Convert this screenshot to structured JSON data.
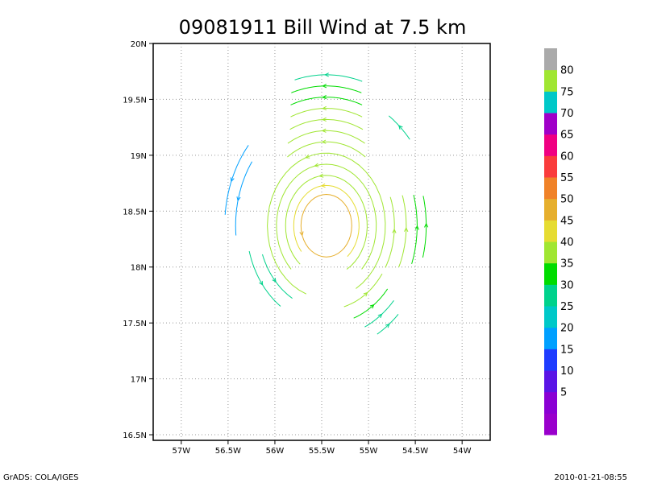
{
  "chart_data": {
    "type": "streamline",
    "title": "09081911 Bill Wind at 7.5 km",
    "xlabel": "",
    "ylabel": "",
    "xlim": [
      -57.3,
      -53.7
    ],
    "ylim": [
      16.45,
      20.0
    ],
    "x_ticks": [
      {
        "value": -57.0,
        "label": "57W"
      },
      {
        "value": -56.5,
        "label": "56.5W"
      },
      {
        "value": -56.0,
        "label": "56W"
      },
      {
        "value": -55.5,
        "label": "55.5W"
      },
      {
        "value": -55.0,
        "label": "55W"
      },
      {
        "value": -54.5,
        "label": "54.5W"
      },
      {
        "value": -54.0,
        "label": "54W"
      }
    ],
    "y_ticks": [
      {
        "value": 16.5,
        "label": "16.5N"
      },
      {
        "value": 17.0,
        "label": "17N"
      },
      {
        "value": 17.5,
        "label": "17.5N"
      },
      {
        "value": 18.0,
        "label": "18N"
      },
      {
        "value": 18.5,
        "label": "18.5N"
      },
      {
        "value": 19.0,
        "label": "19N"
      },
      {
        "value": 19.5,
        "label": "19.5N"
      },
      {
        "value": 20.0,
        "label": "20N"
      }
    ],
    "grid": true,
    "center": {
      "lon": -55.45,
      "lat": 18.37
    },
    "colorbar": {
      "levels": [
        {
          "label": "",
          "color": "#9900cc"
        },
        {
          "label": "5",
          "color": "#8a00d4"
        },
        {
          "label": "10",
          "color": "#5a14e6"
        },
        {
          "label": "15",
          "color": "#1e3cff"
        },
        {
          "label": "20",
          "color": "#00a0ff"
        },
        {
          "label": "25",
          "color": "#00c8c8"
        },
        {
          "label": "30",
          "color": "#00d28c"
        },
        {
          "label": "35",
          "color": "#00dc00"
        },
        {
          "label": "40",
          "color": "#a0e632"
        },
        {
          "label": "45",
          "color": "#e6dc32"
        },
        {
          "label": "50",
          "color": "#e6af2d"
        },
        {
          "label": "55",
          "color": "#f08228"
        },
        {
          "label": "60",
          "color": "#fa3c3c"
        },
        {
          "label": "65",
          "color": "#f00082"
        },
        {
          "label": "70",
          "color": "#a000c8"
        },
        {
          "label": "75",
          "color": "#00c8c8"
        },
        {
          "label": "80",
          "color": "#a0e632"
        },
        {
          "label": "",
          "color": "#aaaaaa"
        }
      ]
    },
    "arcs": [
      {
        "r": 0.28,
        "from": 0,
        "to": 360,
        "dir": 1,
        "speed": 52
      },
      {
        "r": 0.36,
        "from": -50,
        "to": 220,
        "dir": 1,
        "speed": 48
      },
      {
        "r": 0.45,
        "from": -60,
        "to": 230,
        "dir": 1,
        "speed": 44
      },
      {
        "r": 0.55,
        "from": -45,
        "to": 225,
        "dir": 1,
        "speed": 42
      },
      {
        "r": 0.65,
        "from": -60,
        "to": 250,
        "dir": 1,
        "speed": 40
      },
      {
        "r": 0.75,
        "from": 55,
        "to": 125,
        "dir": 1,
        "speed": 42
      },
      {
        "r": 0.85,
        "from": 60,
        "to": 120,
        "dir": 1,
        "speed": 42
      },
      {
        "r": 0.95,
        "from": 65,
        "to": 115,
        "dir": 1,
        "speed": 44
      },
      {
        "r": 1.05,
        "from": 68,
        "to": 112,
        "dir": 1,
        "speed": 40
      },
      {
        "r": 1.15,
        "from": 70,
        "to": 110,
        "dir": 1,
        "speed": 38
      },
      {
        "r": 1.25,
        "from": 72,
        "to": 108,
        "dir": 1,
        "speed": 36
      },
      {
        "r": 1.35,
        "from": 73,
        "to": 105,
        "dir": 1,
        "speed": 34
      },
      {
        "r": 0.75,
        "from": -30,
        "to": 20,
        "dir": 1,
        "speed": 42
      },
      {
        "r": 0.88,
        "from": -25,
        "to": 18,
        "dir": 1,
        "speed": 40
      },
      {
        "r": 1.0,
        "from": -20,
        "to": 16,
        "dir": 1,
        "speed": 37
      },
      {
        "r": 1.1,
        "from": -15,
        "to": 14,
        "dir": 1,
        "speed": 35
      },
      {
        "r": 0.75,
        "from": -75,
        "to": -35,
        "dir": 1,
        "speed": 40
      },
      {
        "r": 0.88,
        "from": -70,
        "to": -40,
        "dir": 1,
        "speed": 37
      },
      {
        "r": 1.0,
        "from": -65,
        "to": -42,
        "dir": 1,
        "speed": 34
      },
      {
        "r": 1.12,
        "from": -60,
        "to": -45,
        "dir": 1,
        "speed": 33
      },
      {
        "r": 0.75,
        "from": 200,
        "to": 240,
        "dir": 1,
        "speed": 33
      },
      {
        "r": 0.88,
        "from": 195,
        "to": 235,
        "dir": 1,
        "speed": 31
      },
      {
        "r": 1.0,
        "from": 145,
        "to": 185,
        "dir": 1,
        "speed": 24
      },
      {
        "r": 1.12,
        "from": 140,
        "to": 175,
        "dir": 1,
        "speed": 22
      },
      {
        "r": 1.2,
        "from": 40,
        "to": 55,
        "dir": 1,
        "speed": 34
      }
    ]
  },
  "footer": {
    "left": "GrADS: COLA/IGES",
    "right": "2010-01-21-08:55"
  }
}
